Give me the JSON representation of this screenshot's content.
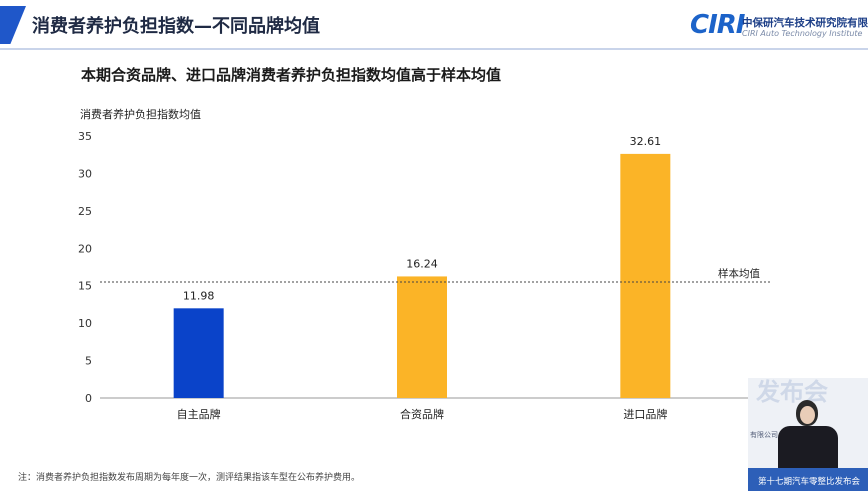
{
  "header": {
    "title": "消费者养护负担指数—不同品牌均值",
    "logo_mark": "CIRI",
    "logo_cn": "中保研汽车技术研究院有限公司",
    "logo_en": "CIRI Auto Technology Institute"
  },
  "chart_data": {
    "type": "bar",
    "title": "本期合资品牌、进口品牌消费者养护负担指数均值高于样本均值",
    "ylabel": "消费者养护负担指数均值",
    "xlabel": "",
    "categories": [
      "自主品牌",
      "合资品牌",
      "进口品牌"
    ],
    "values": [
      11.98,
      16.24,
      32.61
    ],
    "value_labels": [
      "11.98",
      "16.24",
      "32.61"
    ],
    "bar_colors": [
      "#0a43c9",
      "#fbb427",
      "#fbb427"
    ],
    "ylim": [
      0,
      35
    ],
    "yticks": [
      "0",
      "5",
      "10",
      "15",
      "20",
      "25",
      "30",
      "35"
    ],
    "reference_line": {
      "label": "样本均值",
      "value": 15.5,
      "style": "dotted"
    },
    "grid": false,
    "legend": "none"
  },
  "footnote": "注：消费者养护负担指数发布周期为每年度一次，测评结果指该车型在公布养护费用。",
  "video": {
    "banner": "发布会",
    "small_text": "有限公司",
    "caption": "第十七期汽车零整比发布会"
  },
  "colors": {
    "accent": "#1f57c9",
    "axis": "#888888",
    "text": "#1a1a1a"
  }
}
